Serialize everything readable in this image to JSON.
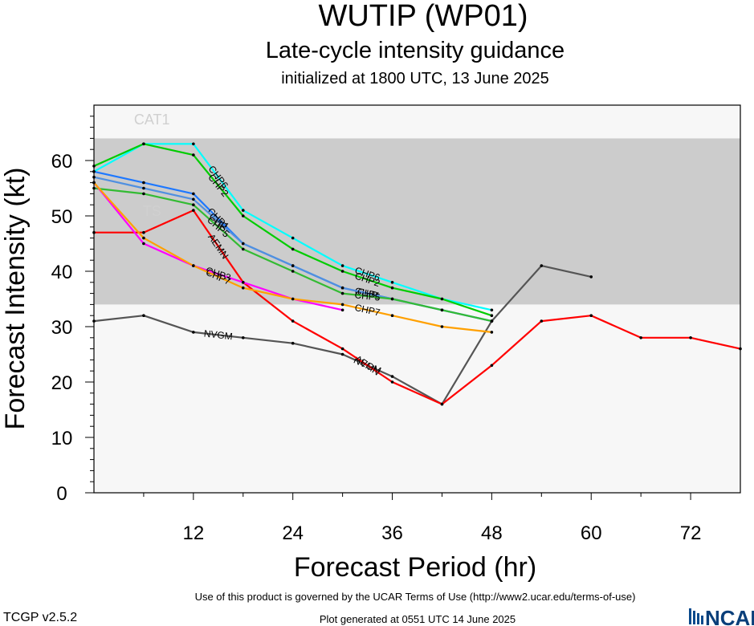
{
  "title": "WUTIP (WP01)",
  "subtitle": "Late-cycle intensity guidance",
  "initialized": "initialized at 1800 UTC, 13 June 2025",
  "footer": {
    "terms": "Use of this product is governed by the UCAR Terms of Use (http://www2.ucar.edu/terms-of-use)",
    "generated": "Plot generated at 0551 UTC   14 June 2025",
    "version": "TCGP v2.5.2",
    "logo": "NCAR"
  },
  "chart_data": {
    "type": "line",
    "xlabel": "Forecast Period (hr)",
    "ylabel": "Forecast Intensity (kt)",
    "xlim": [
      0,
      78
    ],
    "ylim": [
      0,
      70
    ],
    "xticks": [
      12,
      24,
      36,
      48,
      60,
      72
    ],
    "yticks": [
      0,
      10,
      20,
      30,
      40,
      50,
      60
    ],
    "grid": "none",
    "legend": "none",
    "bands": [
      {
        "label": "TS",
        "from": 34,
        "to": 64,
        "color": "#cccccc"
      },
      {
        "label": "CAT1",
        "from": 64,
        "to": 70,
        "color": "#f7f7f7"
      }
    ],
    "series": [
      {
        "name": "NVGM",
        "color": "#555555",
        "x": [
          0,
          6,
          12,
          18,
          24,
          30,
          36,
          42,
          48,
          54,
          60
        ],
        "y": [
          31,
          32,
          29,
          28,
          27,
          25,
          21,
          16,
          31,
          41,
          39
        ]
      },
      {
        "name": "AEMN",
        "color": "#ff0000",
        "x": [
          0,
          6,
          12,
          18,
          24,
          30,
          36,
          42,
          48,
          54,
          60,
          66,
          72,
          78
        ],
        "y": [
          47,
          47,
          51,
          38,
          31,
          26,
          20,
          16,
          23,
          31,
          32,
          28,
          28,
          26
        ]
      },
      {
        "name": "CHP6",
        "color": "#00ffff",
        "x": [
          0,
          6,
          12,
          18,
          24,
          30,
          36,
          42,
          48
        ],
        "y": [
          58,
          63,
          63,
          51,
          46,
          41,
          38,
          35,
          33
        ]
      },
      {
        "name": "CHP2",
        "color": "#00cc00",
        "x": [
          0,
          6,
          12,
          18,
          24,
          30,
          36,
          42,
          48
        ],
        "y": [
          59,
          63,
          61,
          50,
          44,
          40,
          37,
          35,
          32
        ]
      },
      {
        "name": "CHP1",
        "color": "#1e78ff",
        "x": [
          0,
          6,
          12,
          18,
          24,
          30,
          36,
          42,
          48
        ],
        "y": [
          58,
          56,
          54,
          45,
          41,
          37,
          35,
          33,
          31
        ]
      },
      {
        "name": "CHP",
        "color": "#5090e0",
        "x": [
          0,
          6,
          12,
          18,
          24,
          30,
          36,
          42,
          48
        ],
        "y": [
          57,
          55,
          53,
          45,
          41,
          37,
          35,
          33,
          31
        ]
      },
      {
        "name": "CHP5",
        "color": "#33bb33",
        "x": [
          0,
          6,
          12,
          18,
          24,
          30,
          36,
          42,
          48
        ],
        "y": [
          55,
          54,
          52,
          44,
          40,
          36,
          35,
          33,
          31
        ]
      },
      {
        "name": "CHP3",
        "color": "#ff00ff",
        "x": [
          0,
          6,
          12,
          18,
          24,
          30
        ],
        "y": [
          56,
          45,
          41,
          38,
          35,
          33
        ]
      },
      {
        "name": "CHP7",
        "color": "#ffa000",
        "x": [
          0,
          6,
          12,
          18,
          24,
          30,
          36,
          42,
          48
        ],
        "y": [
          56,
          46,
          41,
          37,
          35,
          34,
          32,
          30,
          29
        ]
      }
    ]
  }
}
